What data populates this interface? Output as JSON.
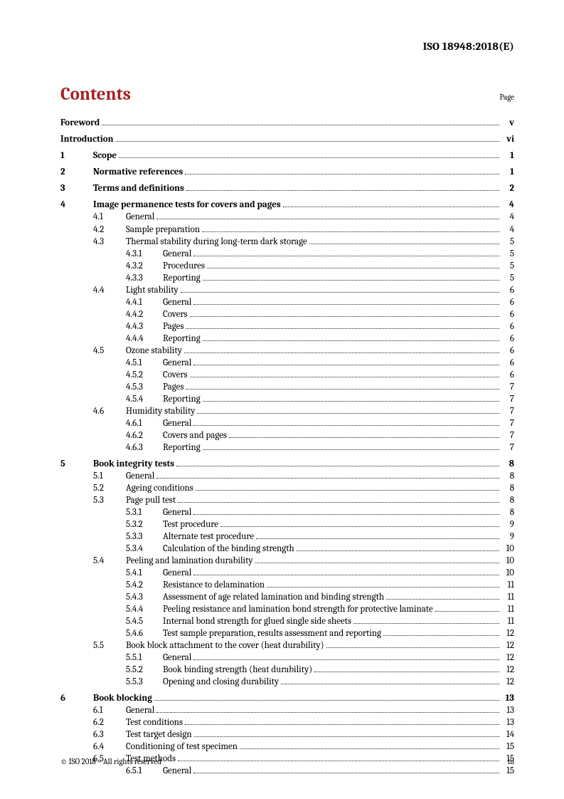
{
  "doc_header": "ISO 18948:2018(E)",
  "title": "Contents",
  "page_label": "Page",
  "footer_left": "© ISO 2018 – All rights reserved",
  "footer_right": "iii",
  "entries": [
    {
      "level": 0,
      "num": "",
      "title": "Foreword",
      "page": "v",
      "bold": true,
      "spaceBefore": 0
    },
    {
      "level": 0,
      "num": "",
      "title": "Introduction",
      "page": "vi",
      "bold": true,
      "spaceBefore": 6
    },
    {
      "level": 1,
      "num": "1",
      "title": "Scope",
      "page": "1",
      "bold": true,
      "spaceBefore": 6
    },
    {
      "level": 1,
      "num": "2",
      "title": "Normative references",
      "page": "1",
      "bold": true,
      "spaceBefore": 6
    },
    {
      "level": 1,
      "num": "3",
      "title": "Terms and definitions",
      "page": "2",
      "bold": true,
      "spaceBefore": 6
    },
    {
      "level": 1,
      "num": "4",
      "title": "Image permanence tests for covers and pages",
      "page": "4",
      "bold": true,
      "spaceBefore": 6
    },
    {
      "level": 2,
      "num": "4.1",
      "title": "General",
      "page": "4"
    },
    {
      "level": 2,
      "num": "4.2",
      "title": "Sample preparation",
      "page": "4"
    },
    {
      "level": 2,
      "num": "4.3",
      "title": "Thermal stability during long-term dark storage",
      "page": "5"
    },
    {
      "level": 3,
      "num": "4.3.1",
      "title": "General",
      "page": "5"
    },
    {
      "level": 3,
      "num": "4.3.2",
      "title": "Procedures",
      "page": "5"
    },
    {
      "level": 3,
      "num": "4.3.3",
      "title": "Reporting",
      "page": "5"
    },
    {
      "level": 2,
      "num": "4.4",
      "title": "Light stability",
      "page": "6"
    },
    {
      "level": 3,
      "num": "4.4.1",
      "title": "General",
      "page": "6"
    },
    {
      "level": 3,
      "num": "4.4.2",
      "title": "Covers",
      "page": "6"
    },
    {
      "level": 3,
      "num": "4.4.3",
      "title": "Pages",
      "page": "6"
    },
    {
      "level": 3,
      "num": "4.4.4",
      "title": "Reporting",
      "page": "6"
    },
    {
      "level": 2,
      "num": "4.5",
      "title": "Ozone stability",
      "page": "6"
    },
    {
      "level": 3,
      "num": "4.5.1",
      "title": "General",
      "page": "6"
    },
    {
      "level": 3,
      "num": "4.5.2",
      "title": "Covers",
      "page": "6"
    },
    {
      "level": 3,
      "num": "4.5.3",
      "title": "Pages",
      "page": "7"
    },
    {
      "level": 3,
      "num": "4.5.4",
      "title": "Reporting",
      "page": "7"
    },
    {
      "level": 2,
      "num": "4.6",
      "title": "Humidity stability",
      "page": "7"
    },
    {
      "level": 3,
      "num": "4.6.1",
      "title": "General",
      "page": "7"
    },
    {
      "level": 3,
      "num": "4.6.2",
      "title": "Covers and pages",
      "page": "7"
    },
    {
      "level": 3,
      "num": "4.6.3",
      "title": "Reporting",
      "page": "7"
    },
    {
      "level": 1,
      "num": "5",
      "title": "Book integrity tests",
      "page": "8",
      "bold": true,
      "spaceBefore": 6
    },
    {
      "level": 2,
      "num": "5.1",
      "title": "General",
      "page": "8"
    },
    {
      "level": 2,
      "num": "5.2",
      "title": "Ageing conditions",
      "page": "8"
    },
    {
      "level": 2,
      "num": "5.3",
      "title": "Page pull test",
      "page": "8"
    },
    {
      "level": 3,
      "num": "5.3.1",
      "title": "General",
      "page": "8"
    },
    {
      "level": 3,
      "num": "5.3.2",
      "title": "Test procedure",
      "page": "9"
    },
    {
      "level": 3,
      "num": "5.3.3",
      "title": "Alternate test procedure",
      "page": "9"
    },
    {
      "level": 3,
      "num": "5.3.4",
      "title": "Calculation of the binding strength",
      "page": "10"
    },
    {
      "level": 2,
      "num": "5.4",
      "title": "Peeling and lamination durability",
      "page": "10"
    },
    {
      "level": 3,
      "num": "5.4.1",
      "title": "General",
      "page": "10"
    },
    {
      "level": 3,
      "num": "5.4.2",
      "title": "Resistance to delamination",
      "page": "11"
    },
    {
      "level": 3,
      "num": "5.4.3",
      "title": "Assessment of age related lamination and binding strength",
      "page": "11"
    },
    {
      "level": 3,
      "num": "5.4.4",
      "title": "Peeling resistance and lamination bond strength for protective laminate",
      "page": "11"
    },
    {
      "level": 3,
      "num": "5.4.5",
      "title": "Internal bond strength for glued single side sheets",
      "page": "11"
    },
    {
      "level": 3,
      "num": "5.4.6",
      "title": "Test sample preparation, results assessment and reporting",
      "page": "12"
    },
    {
      "level": 2,
      "num": "5.5",
      "title": "Book block attachment to the cover (heat durability)",
      "page": "12"
    },
    {
      "level": 3,
      "num": "5.5.1",
      "title": "General",
      "page": "12"
    },
    {
      "level": 3,
      "num": "5.5.2",
      "title": "Book binding strength (heat durability)",
      "page": "12"
    },
    {
      "level": 3,
      "num": "5.5.3",
      "title": "Opening and closing durability",
      "page": "12"
    },
    {
      "level": 1,
      "num": "6",
      "title": "Book blocking",
      "page": "13",
      "bold": true,
      "spaceBefore": 6
    },
    {
      "level": 2,
      "num": "6.1",
      "title": "General",
      "page": "13"
    },
    {
      "level": 2,
      "num": "6.2",
      "title": "Test conditions",
      "page": "13"
    },
    {
      "level": 2,
      "num": "6.3",
      "title": "Test target design",
      "page": "14"
    },
    {
      "level": 2,
      "num": "6.4",
      "title": "Conditioning of test specimen",
      "page": "15"
    },
    {
      "level": 2,
      "num": "6.5",
      "title": "Test methods",
      "page": "15"
    },
    {
      "level": 3,
      "num": "6.5.1",
      "title": "General",
      "page": "15"
    }
  ]
}
